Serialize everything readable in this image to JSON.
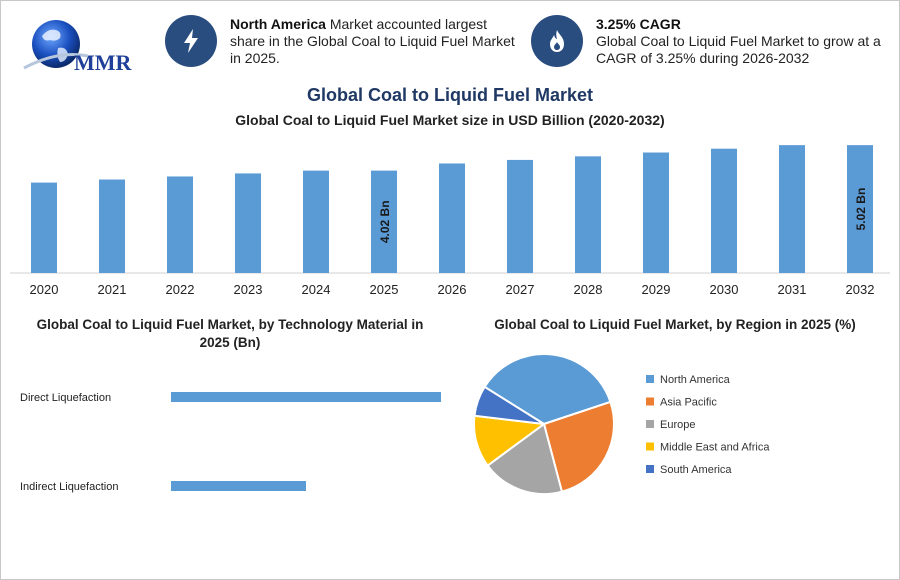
{
  "header": {
    "logo_text": "MMR",
    "fact1": {
      "icon": "lightning-bolt-icon",
      "bold": "North America",
      "text": " Market accounted largest share in the Global Coal to Liquid Fuel Market in 2025."
    },
    "fact2": {
      "icon": "flame-icon",
      "bold": "3.25% CAGR",
      "text": "Global Coal to Liquid Fuel Market to grow at a CAGR of 3.25% during 2026-2032"
    }
  },
  "title": "Global Coal to Liquid Fuel Market",
  "colors": {
    "bar": "#5b9bd5",
    "title": "#1f3864",
    "icon_bg": "#2a4d80"
  },
  "chart_data": [
    {
      "type": "bar",
      "title": "Global Coal to Liquid Fuel Market size in USD Billion (2020-2032)",
      "categories": [
        "2020",
        "2021",
        "2022",
        "2023",
        "2024",
        "2025",
        "2026",
        "2027",
        "2028",
        "2029",
        "2030",
        "2031",
        "2032"
      ],
      "values": [
        3.55,
        3.67,
        3.79,
        3.91,
        4.02,
        4.02,
        4.3,
        4.44,
        4.58,
        4.73,
        4.88,
        5.02,
        5.02
      ],
      "data_labels": {
        "5": "4.02 Bn",
        "12": "5.02 Bn"
      },
      "ylim": [
        0,
        5.3
      ],
      "grid": false
    },
    {
      "type": "bar",
      "orientation": "horizontal",
      "title": "Global Coal to Liquid Fuel Market, by Technology Material in 2025 (Bn)",
      "categories": [
        "Direct Liquefaction",
        "Indirect Liquefaction"
      ],
      "values": [
        2.7,
        1.35
      ],
      "xlim": [
        0,
        3.0
      ],
      "grid": false
    },
    {
      "type": "pie",
      "title": "Global Coal to Liquid Fuel Market, by Region in 2025 (%)",
      "labels": [
        "North America",
        "Asia Pacific",
        "Europe",
        "Middle East and Africa",
        "South America"
      ],
      "values": [
        36,
        26,
        19,
        12,
        7
      ],
      "colors": [
        "#5b9bd5",
        "#ed7d31",
        "#a5a5a5",
        "#ffc000",
        "#4472c4"
      ],
      "legend": "right"
    }
  ]
}
